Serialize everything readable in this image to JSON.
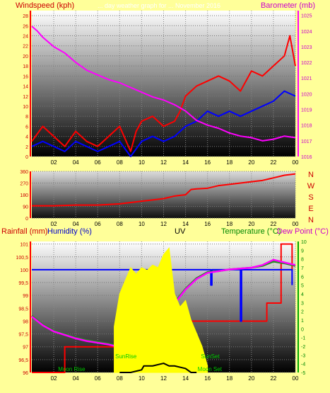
{
  "colors": {
    "background": "#ffff99",
    "wind": "#ff0000",
    "gust_avg": "#0000ff",
    "barometer": "#ff00ff",
    "direction": "#ff0000",
    "rainfall": "#ff0000",
    "humidity": "#0000ff",
    "uv": "#ffff00",
    "temperature": "#228b22",
    "dew_point": "#ff00ff",
    "solar": "#000000",
    "axis_left": "#ff0000",
    "axis_right": "#00aa00",
    "subtitle": "#ffffff"
  },
  "chart_data": [
    {
      "type": "line",
      "title_left": "Windspeed (kph)",
      "title_right": "Barometer (mb)",
      "subtitle": "... day weather graph for ... November 2016",
      "x_ticks": [
        "02",
        "04",
        "06",
        "08",
        "10",
        "12",
        "14",
        "16",
        "18",
        "20",
        "22",
        "00"
      ],
      "y_left": {
        "min": 0,
        "max": 29,
        "ticks": [
          0,
          2,
          4,
          6,
          8,
          10,
          12,
          14,
          16,
          18,
          20,
          22,
          24,
          26,
          28
        ]
      },
      "y_right": {
        "min": 1016,
        "max": 1025.3,
        "ticks": [
          1016,
          1017,
          1018,
          1019,
          1020,
          1021,
          1022,
          1023,
          1024,
          1025
        ]
      },
      "series": [
        {
          "name": "Windspeed",
          "axis": "left",
          "color": "#ff0000",
          "x": [
            0,
            1,
            2,
            3,
            4,
            5,
            6,
            7,
            8,
            9,
            9.5,
            10,
            11,
            12,
            13,
            13.5,
            14,
            15,
            16,
            17,
            18,
            19,
            20,
            21,
            22,
            23,
            23.5,
            24
          ],
          "y": [
            3,
            6,
            4,
            2,
            5,
            3,
            2,
            4,
            6,
            1,
            5,
            7,
            8,
            6,
            7,
            9,
            12,
            14,
            15,
            16,
            15,
            13,
            17,
            16,
            18,
            20,
            24,
            18
          ]
        },
        {
          "name": "Gust average",
          "axis": "left",
          "color": "#0000ff",
          "x": [
            0,
            1,
            2,
            3,
            4,
            5,
            6,
            7,
            8,
            9,
            10,
            11,
            12,
            13,
            14,
            15,
            16,
            17,
            18,
            19,
            20,
            21,
            22,
            23,
            24
          ],
          "y": [
            2,
            3,
            2,
            1,
            3,
            2,
            1,
            2,
            3,
            0,
            3,
            4,
            3,
            4,
            6,
            7,
            9,
            8,
            9,
            8,
            9,
            10,
            11,
            13,
            12
          ]
        },
        {
          "name": "Barometer",
          "axis": "right",
          "color": "#ff00ff",
          "x": [
            0,
            0.5,
            1,
            2,
            3,
            4,
            5,
            6,
            7,
            8,
            9,
            10,
            11,
            12,
            13,
            14,
            14.5,
            15,
            16,
            17,
            18,
            19,
            20,
            21,
            22,
            23,
            24
          ],
          "y": [
            1024.3,
            1024.0,
            1023.6,
            1023.0,
            1022.6,
            1022.0,
            1021.5,
            1021.2,
            1020.9,
            1020.7,
            1020.4,
            1020.1,
            1019.8,
            1019.6,
            1019.3,
            1018.9,
            1018.6,
            1018.3,
            1018.0,
            1017.8,
            1017.5,
            1017.3,
            1017.2,
            1017.0,
            1017.1,
            1017.3,
            1017.2
          ]
        }
      ]
    },
    {
      "type": "line",
      "title_right": [
        "N",
        "W",
        "S",
        "E",
        "N"
      ],
      "x_ticks": [
        "02",
        "04",
        "06",
        "08",
        "10",
        "12",
        "14",
        "16",
        "18",
        "20",
        "22",
        "00"
      ],
      "y_left": {
        "min": 0,
        "max": 360,
        "ticks": [
          0,
          90,
          180,
          270,
          360
        ]
      },
      "series": [
        {
          "name": "Wind direction",
          "color": "#ff0000",
          "x": [
            0,
            2,
            4,
            6,
            8,
            9,
            10,
            11,
            12,
            13,
            14,
            14.5,
            15,
            16,
            17,
            18,
            19,
            20,
            21,
            22,
            23,
            24
          ],
          "y": [
            95,
            95,
            100,
            100,
            110,
            120,
            130,
            140,
            150,
            170,
            180,
            220,
            225,
            230,
            250,
            260,
            270,
            280,
            290,
            310,
            330,
            340
          ]
        }
      ]
    },
    {
      "type": "line",
      "title_left": "Rainfall (mm)",
      "title_humidity": "Humidity (%)",
      "title_uv": "UV",
      "title_temp": "Temperature (°C)",
      "title_dew": "Dew Point (°C)",
      "x_ticks": [
        "02",
        "04",
        "06",
        "08",
        "10",
        "12",
        "14",
        "16",
        "18",
        "20",
        "22",
        "00"
      ],
      "y_left": {
        "min": 96,
        "max": 101.1,
        "ticks": [
          96,
          96.5,
          97,
          97.5,
          98,
          98.5,
          99,
          99.5,
          100,
          100.5,
          101
        ]
      },
      "y_right": {
        "min": -5,
        "max": 10,
        "ticks": [
          -5,
          -4,
          -3,
          -2,
          -1,
          0,
          1,
          2,
          3,
          4,
          5,
          6,
          7,
          8,
          9,
          10
        ]
      },
      "annotations": [
        {
          "text": "SunRise",
          "x": 7.6
        },
        {
          "text": "SunSet",
          "x": 15.4
        },
        {
          "text": "Moon Rise",
          "x": 2.4
        },
        {
          "text": "Moon Set",
          "x": 15.1
        }
      ],
      "series": [
        {
          "name": "Rainfall",
          "axis": "left",
          "color": "#ff0000",
          "x": [
            0,
            3.0,
            3.0,
            12.7,
            12.7,
            21.4,
            21.4,
            22.7,
            22.7,
            23.7,
            23.7
          ],
          "y": [
            96,
            96,
            97,
            97,
            98,
            98,
            98.7,
            98.7,
            101,
            101,
            100
          ]
        },
        {
          "name": "Humidity",
          "axis": "left",
          "color": "#0000ff",
          "x": [
            0,
            16.3,
            16.3,
            16.4,
            16.4,
            19.0,
            19.0,
            19.1,
            19.1,
            23.7,
            23.7
          ],
          "y": [
            100,
            100,
            99.4,
            99.4,
            100,
            100,
            98.0,
            98.0,
            100,
            100,
            99.4
          ]
        },
        {
          "name": "Temperature",
          "axis": "right",
          "color": "#228b22",
          "x": [
            0,
            1,
            2,
            3,
            4,
            5,
            6,
            7,
            8,
            9,
            10,
            11,
            12,
            13,
            14,
            15,
            16,
            17,
            18,
            19,
            20,
            21,
            22,
            23,
            24
          ],
          "y": [
            1.5,
            0.5,
            -0.2,
            -0.6,
            -1.0,
            -1.3,
            -1.5,
            -1.7,
            -2.0,
            -1.6,
            -0.8,
            0.3,
            1.6,
            3.0,
            4.6,
            5.8,
            6.5,
            6.6,
            6.8,
            6.9,
            7.0,
            7.2,
            7.7,
            7.5,
            7.2
          ]
        },
        {
          "name": "Dew Point",
          "axis": "right",
          "color": "#ff00ff",
          "x": [
            0,
            1,
            2,
            3,
            4,
            5,
            6,
            7,
            8,
            9,
            10,
            11,
            12,
            13,
            14,
            15,
            16,
            17,
            18,
            19,
            20,
            21,
            22,
            23,
            24
          ],
          "y": [
            1.4,
            0.4,
            -0.3,
            -0.7,
            -1.1,
            -1.4,
            -1.6,
            -1.8,
            -2.1,
            -1.7,
            -0.9,
            0.2,
            1.5,
            2.9,
            4.5,
            5.7,
            6.4,
            6.6,
            6.8,
            6.9,
            7.0,
            7.3,
            7.9,
            7.6,
            7.3
          ]
        },
        {
          "name": "UV",
          "axis": "uv",
          "color": "#ffff00",
          "x": [
            7.5,
            8.0,
            8.5,
            9.0,
            9.5,
            10.0,
            10.5,
            11.0,
            11.5,
            12.0,
            12.5,
            13.0,
            13.5,
            14.0,
            14.5,
            15.0,
            15.5,
            16.0
          ],
          "y": [
            0.35,
            0.6,
            0.7,
            0.8,
            0.75,
            0.8,
            0.78,
            0.82,
            0.8,
            0.9,
            0.95,
            0.6,
            0.5,
            0.55,
            0.4,
            0.3,
            0.2,
            0.05
          ]
        },
        {
          "name": "Solar",
          "axis": "uv",
          "color": "#000000",
          "x": [
            8.0,
            9.0,
            10.0,
            10.2,
            11.0,
            12.0,
            12.5,
            13.0,
            14.0,
            14.5,
            15.0
          ],
          "y": [
            0.0,
            0.0,
            0.02,
            0.05,
            0.05,
            0.07,
            0.05,
            0.05,
            0.03,
            0.0,
            0.0
          ]
        }
      ]
    }
  ]
}
